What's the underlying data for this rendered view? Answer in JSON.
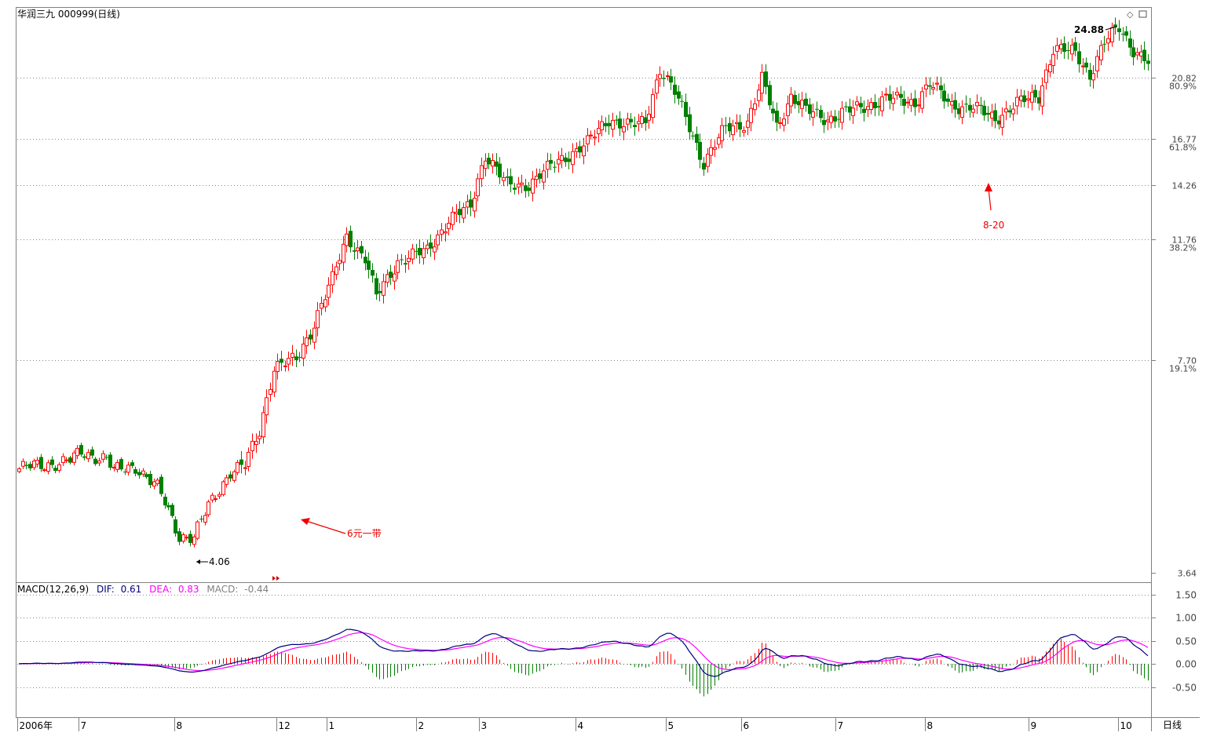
{
  "header": {
    "title": "华润三九 000999(日线)"
  },
  "macd_header": {
    "label": "MACD(12,26,9)",
    "dif_label": "DIF:",
    "dif_value": "0.61",
    "dea_label": "DEA:",
    "dea_value": "0.83",
    "macd_label": "MACD:",
    "macd_value": "-0.44"
  },
  "price_axis": {
    "ticks": [
      {
        "price": 20.82,
        "label": "20.82",
        "pct": "80.9%"
      },
      {
        "price": 16.77,
        "label": "16.77",
        "pct": "61.8%"
      },
      {
        "price": 14.26,
        "label": "14.26",
        "pct": ""
      },
      {
        "price": 11.76,
        "label": "11.76",
        "pct": "38.2%"
      },
      {
        "price": 7.7,
        "label": "7.70",
        "pct": "19.1%"
      },
      {
        "price": 3.64,
        "label": "3.64",
        "pct": ""
      }
    ]
  },
  "macd_axis": {
    "ticks": [
      {
        "value": 1.5,
        "label": "1.50"
      },
      {
        "value": 1.0,
        "label": "1.00"
      },
      {
        "value": 0.5,
        "label": "0.50"
      },
      {
        "value": 0.0,
        "label": "0.00"
      },
      {
        "value": -0.5,
        "label": "-0.50"
      }
    ]
  },
  "time_axis": {
    "labels": [
      "2006年",
      "7",
      "8",
      "12",
      "1",
      "2",
      "3",
      "4",
      "5",
      "6",
      "7",
      "8",
      "9",
      "10"
    ],
    "period_label": "日线"
  },
  "annotations": {
    "low_label": "4.06",
    "high_label": "24.88",
    "arrow1_label": "6元一带",
    "arrow2_label": "8-20"
  },
  "colors": {
    "up": "#ff0000",
    "down": "#008000",
    "dif": "#000080",
    "dea": "#ff00ff",
    "grid": "#888888"
  },
  "chart_data": {
    "type": "candlestick",
    "price_scale": "log",
    "ylim": [
      3.64,
      25.3
    ],
    "series_close_approx": [
      {
        "period": "2006年",
        "close": 5.4
      },
      {
        "period": "7",
        "close": 5.5
      },
      {
        "period": "8",
        "close": 4.1
      },
      {
        "period": "12",
        "close": 6.0
      },
      {
        "period": "1",
        "close": 7.7
      },
      {
        "period": "2",
        "close": 11.2
      },
      {
        "period": "3",
        "close": 12.5
      },
      {
        "period": "4",
        "close": 14.3
      },
      {
        "period": "5",
        "close": 17.5
      },
      {
        "period": "6",
        "close": 18.0
      },
      {
        "period": "7",
        "close": 18.3
      },
      {
        "period": "8",
        "close": 19.0
      },
      {
        "period": "9",
        "close": 23.5
      },
      {
        "period": "10",
        "close": 22.5
      }
    ],
    "macd_ylim": [
      -1.05,
      1.75
    ]
  }
}
